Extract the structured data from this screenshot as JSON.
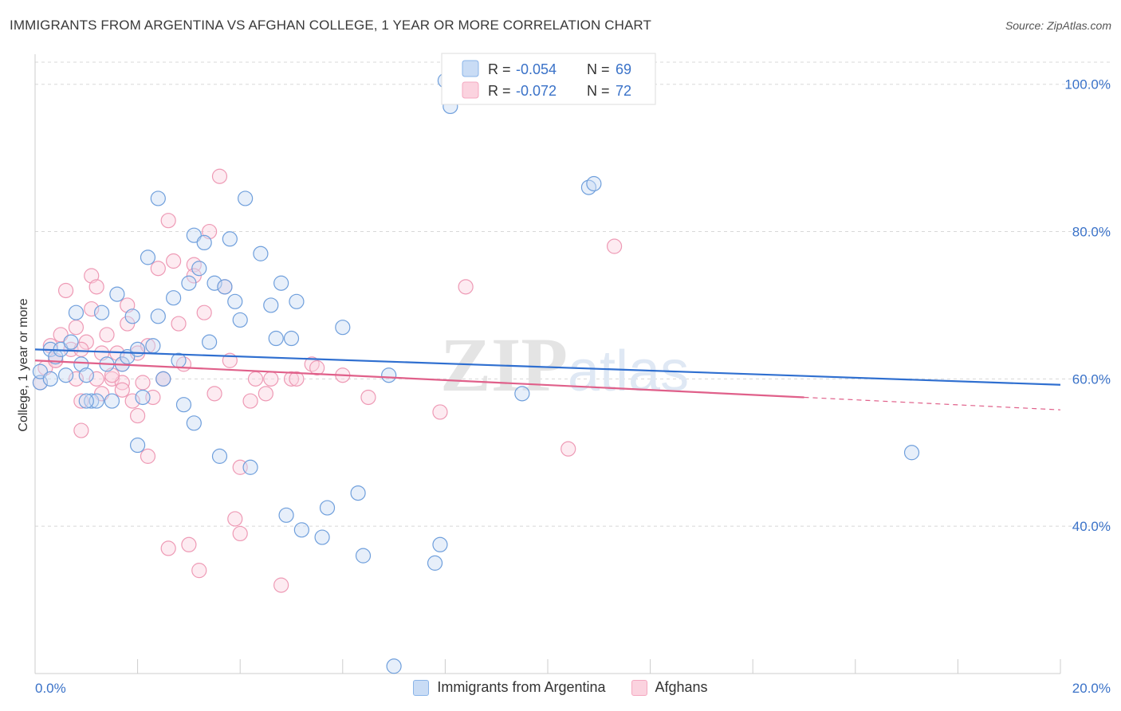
{
  "title": "IMMIGRANTS FROM ARGENTINA VS AFGHAN COLLEGE, 1 YEAR OR MORE CORRELATION CHART",
  "source": "Source: ZipAtlas.com",
  "watermark": {
    "zip": "ZIP",
    "atlas": "atlas"
  },
  "legend_top": [
    {
      "r_label": "R =",
      "r_value": "-0.054",
      "n_label": "N =",
      "n_value": "69"
    },
    {
      "r_label": "R =",
      "r_value": "-0.072",
      "n_label": "N =",
      "n_value": "72"
    }
  ],
  "chart_data": {
    "type": "scatter",
    "title": "IMMIGRANTS FROM ARGENTINA VS AFGHAN COLLEGE, 1 YEAR OR MORE CORRELATION CHART",
    "xlabel": "",
    "ylabel": "College, 1 year or more",
    "xlim": [
      0,
      20
    ],
    "ylim": [
      20,
      103
    ],
    "x_tick_labels": [
      "0.0%",
      "20.0%"
    ],
    "y_ticks": [
      40,
      60,
      80,
      100
    ],
    "y_tick_labels": [
      "40.0%",
      "60.0%",
      "80.0%",
      "100.0%"
    ],
    "grid": true,
    "legend_position": "top-center",
    "colors": {
      "series1": "#8ab4e8",
      "series1_line": "#2f6fd0",
      "series2": "#f4a8c0",
      "series2_line": "#e0608a"
    },
    "series": [
      {
        "name": "Immigrants from Argentina",
        "trend": {
          "x0": 0,
          "y0": 64.0,
          "x1": 20,
          "y1": 59.2
        },
        "points": [
          [
            0.1,
            59.5
          ],
          [
            0.1,
            61.0
          ],
          [
            0.3,
            64.0
          ],
          [
            0.4,
            63.0
          ],
          [
            0.5,
            64.0
          ],
          [
            0.6,
            60.5
          ],
          [
            0.7,
            65.0
          ],
          [
            0.8,
            69.0
          ],
          [
            0.9,
            62.0
          ],
          [
            1.0,
            60.5
          ],
          [
            1.1,
            57.0
          ],
          [
            1.2,
            57.0
          ],
          [
            1.3,
            69.0
          ],
          [
            1.4,
            62.0
          ],
          [
            1.5,
            57.0
          ],
          [
            1.6,
            71.5
          ],
          [
            1.7,
            62.0
          ],
          [
            1.8,
            63.0
          ],
          [
            1.9,
            68.5
          ],
          [
            2.0,
            64.0
          ],
          [
            2.0,
            51.0
          ],
          [
            2.1,
            57.5
          ],
          [
            2.2,
            76.5
          ],
          [
            2.3,
            64.5
          ],
          [
            2.4,
            68.5
          ],
          [
            2.4,
            84.5
          ],
          [
            2.5,
            60.0
          ],
          [
            2.7,
            71.0
          ],
          [
            2.8,
            62.5
          ],
          [
            2.9,
            56.5
          ],
          [
            3.0,
            73.0
          ],
          [
            3.1,
            54.0
          ],
          [
            3.1,
            79.5
          ],
          [
            3.2,
            75.0
          ],
          [
            3.3,
            78.5
          ],
          [
            3.4,
            65.0
          ],
          [
            3.5,
            73.0
          ],
          [
            3.6,
            49.5
          ],
          [
            3.7,
            72.5
          ],
          [
            3.8,
            79.0
          ],
          [
            3.9,
            70.5
          ],
          [
            4.0,
            68.0
          ],
          [
            4.1,
            84.5
          ],
          [
            4.2,
            48.0
          ],
          [
            4.4,
            77.0
          ],
          [
            4.6,
            70.0
          ],
          [
            4.7,
            65.5
          ],
          [
            4.8,
            73.0
          ],
          [
            4.9,
            41.5
          ],
          [
            5.0,
            65.5
          ],
          [
            5.1,
            70.5
          ],
          [
            5.2,
            39.5
          ],
          [
            5.6,
            38.5
          ],
          [
            5.7,
            42.5
          ],
          [
            6.0,
            67.0
          ],
          [
            6.3,
            44.5
          ],
          [
            6.4,
            36.0
          ],
          [
            6.9,
            60.5
          ],
          [
            7.0,
            21.0
          ],
          [
            7.8,
            35.0
          ],
          [
            7.9,
            37.5
          ],
          [
            8.0,
            100.5
          ],
          [
            8.1,
            97.0
          ],
          [
            9.5,
            58.0
          ],
          [
            10.8,
            86.0
          ],
          [
            10.9,
            86.5
          ],
          [
            17.1,
            50.0
          ],
          [
            1.0,
            57.0
          ],
          [
            0.3,
            60.0
          ]
        ]
      },
      {
        "name": "Afghans",
        "trend": {
          "x0": 0,
          "y0": 62.5,
          "x1": 15,
          "y1": 57.5,
          "x2": 20,
          "y2": 55.8
        },
        "points": [
          [
            0.1,
            59.5
          ],
          [
            0.2,
            61.5
          ],
          [
            0.3,
            64.5
          ],
          [
            0.4,
            62.5
          ],
          [
            0.5,
            66.0
          ],
          [
            0.6,
            72.0
          ],
          [
            0.7,
            64.0
          ],
          [
            0.8,
            60.0
          ],
          [
            0.8,
            67.0
          ],
          [
            0.9,
            53.0
          ],
          [
            0.9,
            57.0
          ],
          [
            1.0,
            65.0
          ],
          [
            1.1,
            69.5
          ],
          [
            1.1,
            74.0
          ],
          [
            1.2,
            60.0
          ],
          [
            1.2,
            72.5
          ],
          [
            1.3,
            58.0
          ],
          [
            1.3,
            63.5
          ],
          [
            1.4,
            66.0
          ],
          [
            1.5,
            60.0
          ],
          [
            1.6,
            63.5
          ],
          [
            1.7,
            62.0
          ],
          [
            1.7,
            59.5
          ],
          [
            1.8,
            67.5
          ],
          [
            1.8,
            70.0
          ],
          [
            1.9,
            57.0
          ],
          [
            2.0,
            63.5
          ],
          [
            2.0,
            55.0
          ],
          [
            2.1,
            59.5
          ],
          [
            2.2,
            64.5
          ],
          [
            2.2,
            49.5
          ],
          [
            2.3,
            57.5
          ],
          [
            2.4,
            75.0
          ],
          [
            2.5,
            60.0
          ],
          [
            2.6,
            81.5
          ],
          [
            2.6,
            37.0
          ],
          [
            2.7,
            76.0
          ],
          [
            2.8,
            67.5
          ],
          [
            2.9,
            62.0
          ],
          [
            3.0,
            37.5
          ],
          [
            3.1,
            75.5
          ],
          [
            3.1,
            74.0
          ],
          [
            3.2,
            34.0
          ],
          [
            3.3,
            69.0
          ],
          [
            3.4,
            80.0
          ],
          [
            3.5,
            58.0
          ],
          [
            3.6,
            87.5
          ],
          [
            3.7,
            72.5
          ],
          [
            3.8,
            62.5
          ],
          [
            3.9,
            41.0
          ],
          [
            4.0,
            39.0
          ],
          [
            4.0,
            48.0
          ],
          [
            4.2,
            57.0
          ],
          [
            4.3,
            60.0
          ],
          [
            4.5,
            58.0
          ],
          [
            4.6,
            60.0
          ],
          [
            4.8,
            32.0
          ],
          [
            5.0,
            60.0
          ],
          [
            5.1,
            60.0
          ],
          [
            5.4,
            62.0
          ],
          [
            5.5,
            61.5
          ],
          [
            6.0,
            60.5
          ],
          [
            6.5,
            57.5
          ],
          [
            7.9,
            55.5
          ],
          [
            8.4,
            72.5
          ],
          [
            10.4,
            50.5
          ],
          [
            11.3,
            78.0
          ],
          [
            1.5,
            60.5
          ],
          [
            2.5,
            60.0
          ],
          [
            0.4,
            62.5
          ],
          [
            0.9,
            64.0
          ],
          [
            1.7,
            58.5
          ]
        ]
      }
    ]
  }
}
